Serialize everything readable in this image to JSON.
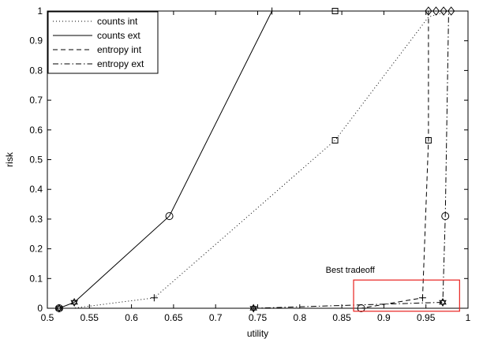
{
  "chart_data": {
    "type": "line",
    "xlabel": "utility",
    "ylabel": "risk",
    "xlim": [
      0.5,
      1.0
    ],
    "ylim": [
      0,
      1
    ],
    "x_ticks": [
      0.5,
      0.55,
      0.6,
      0.65,
      0.7,
      0.75,
      0.8,
      0.85,
      0.9,
      0.95,
      1.0
    ],
    "x_tick_labels": [
      "0.5",
      "0.55",
      "0.6",
      "0.65",
      "0.7",
      "0.75",
      "0.8",
      "0.85",
      "0.9",
      "0.95",
      "1"
    ],
    "y_ticks": [
      0,
      0.1,
      0.2,
      0.3,
      0.4,
      0.5,
      0.6,
      0.7,
      0.8,
      0.9,
      1.0
    ],
    "y_tick_labels": [
      "0",
      "0.1",
      "0.2",
      "0.3",
      "0.4",
      "0.5",
      "0.6",
      "0.7",
      "0.8",
      "0.9",
      "1"
    ],
    "grid": false,
    "legend_position": "top-left",
    "series": [
      {
        "name": "counts int",
        "line_style": "dotted",
        "points": [
          [
            0.514,
            0.0
          ],
          [
            0.53,
            0.0
          ],
          [
            0.627,
            0.035
          ],
          [
            0.842,
            0.565
          ],
          [
            0.953,
            0.98
          ],
          [
            0.977,
            1.0
          ]
        ]
      },
      {
        "name": "counts ext",
        "line_style": "solid",
        "points": [
          [
            0.514,
            0.0
          ],
          [
            0.532,
            0.02
          ],
          [
            0.645,
            0.31
          ],
          [
            0.767,
            1.0
          ]
        ]
      },
      {
        "name": "entropy int",
        "line_style": "dashed",
        "points": [
          [
            0.514,
            0.0
          ],
          [
            0.745,
            0.0
          ],
          [
            0.84,
            0.0
          ],
          [
            0.873,
            0.0
          ],
          [
            0.946,
            0.035
          ],
          [
            0.953,
            0.565
          ],
          [
            0.953,
            1.0
          ],
          [
            0.965,
            1.0
          ]
        ]
      },
      {
        "name": "entropy ext",
        "line_style": "dashdot",
        "points": [
          [
            0.514,
            0.0
          ],
          [
            0.745,
            0.0
          ],
          [
            0.97,
            0.02
          ],
          [
            0.973,
            0.31
          ],
          [
            0.977,
            1.0
          ],
          [
            0.98,
            1.0
          ]
        ]
      }
    ],
    "extra_markers": [
      {
        "shape": "circle",
        "x": 0.514,
        "y": 0.0
      },
      {
        "shape": "circle",
        "x": 0.645,
        "y": 0.31
      },
      {
        "shape": "circle",
        "x": 0.873,
        "y": 0.0
      },
      {
        "shape": "circle",
        "x": 0.973,
        "y": 0.31
      },
      {
        "shape": "plus",
        "x": 0.627,
        "y": 0.035
      },
      {
        "shape": "plus",
        "x": 0.767,
        "y": 1.0
      },
      {
        "shape": "plus",
        "x": 0.745,
        "y": 0.0
      },
      {
        "shape": "plus",
        "x": 0.946,
        "y": 0.035
      },
      {
        "shape": "square",
        "x": 0.842,
        "y": 0.565
      },
      {
        "shape": "square",
        "x": 0.842,
        "y": 1.0
      },
      {
        "shape": "square",
        "x": 0.953,
        "y": 0.565
      },
      {
        "shape": "diamond",
        "x": 0.953,
        "y": 1.0
      },
      {
        "shape": "diamond",
        "x": 0.962,
        "y": 1.0
      },
      {
        "shape": "diamond",
        "x": 0.971,
        "y": 1.0
      },
      {
        "shape": "diamond",
        "x": 0.98,
        "y": 1.0
      },
      {
        "shape": "hexagram",
        "x": 0.532,
        "y": 0.02
      },
      {
        "shape": "hexagram",
        "x": 0.745,
        "y": 0.0
      },
      {
        "shape": "hexagram",
        "x": 0.97,
        "y": 0.02
      },
      {
        "shape": "hexagram",
        "x": 0.514,
        "y": 0.0
      }
    ],
    "annotations": [
      {
        "text": "Best tradeoff",
        "text_anchor_x": 0.86,
        "text_anchor_y": 0.12,
        "box_x_range": [
          0.864,
          0.99
        ],
        "box_y_range": [
          -0.01,
          0.095
        ],
        "box_color": "#e8211e"
      }
    ]
  }
}
